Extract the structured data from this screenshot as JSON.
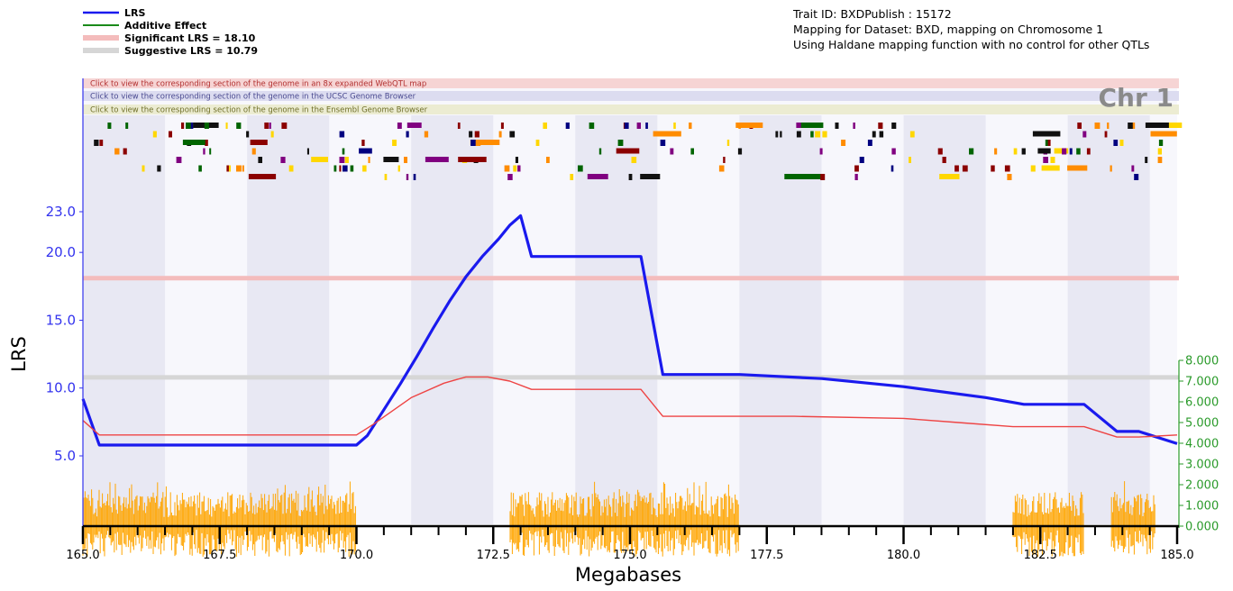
{
  "header": {
    "trait_line": "Trait ID: BXDPublish : 15172",
    "dataset_line": "Mapping for Dataset: BXD, mapping on Chromosome 1",
    "method_line": "Using Haldane mapping function with no control for other QTLs"
  },
  "legend": {
    "items": [
      {
        "label": "LRS",
        "color": "#1a1aee",
        "style": "line"
      },
      {
        "label": "Additive Effect",
        "color": "#1a8a1a",
        "style": "line"
      },
      {
        "label": "Significant LRS = 18.10",
        "color": "#f4bcbc",
        "style": "band"
      },
      {
        "label": "Suggestive LRS = 10.79",
        "color": "#d6d6d6",
        "style": "band"
      }
    ]
  },
  "banners": [
    {
      "text": "Click to view the corresponding section of the genome in an 8x expanded WebQTL map",
      "bg": "#f6d4d4",
      "fg": "#b23030"
    },
    {
      "text": "Click to view the corresponding section of the genome in the UCSC Genome Browser",
      "bg": "#dcdcf0",
      "fg": "#4a4a90"
    },
    {
      "text": "Click to view the corresponding section of the genome in the Ensembl Genome Browser",
      "bg": "#ececd2",
      "fg": "#70702a"
    }
  ],
  "chromosome_label": "Chr 1",
  "colors": {
    "lrs": "#1a1aee",
    "additive": "#ee4444",
    "significant": "#f4bcbc",
    "suggestive": "#d6d6d6",
    "axis_left": "#3333ee",
    "axis_right": "#2a9a2a",
    "snp_density": "#ffa500",
    "band_light": "#f7f7fc",
    "band_dark": "#e8e8f3"
  },
  "chart_data": {
    "type": "line",
    "xlabel": "Megabases",
    "ylabel": "LRS",
    "xlim": [
      165.0,
      185.0
    ],
    "ylim": [
      0,
      23.0
    ],
    "y2lim": [
      0,
      8.0
    ],
    "x_ticks": [
      "165.0",
      "167.5",
      "170.0",
      "172.5",
      "175.0",
      "177.5",
      "180.0",
      "182.5",
      "185.0"
    ],
    "y_ticks": [
      "5.0",
      "10.0",
      "15.0",
      "20.0",
      "23.0"
    ],
    "y2_ticks": [
      "0.000",
      "1.000",
      "2.000",
      "3.000",
      "4.000",
      "5.000",
      "6.000",
      "7.000",
      "8.000"
    ],
    "thresholds": {
      "significant": 18.1,
      "suggestive": 10.79
    },
    "series": [
      {
        "name": "LRS",
        "axis": "left",
        "x": [
          165.0,
          165.3,
          170.0,
          170.2,
          170.5,
          170.8,
          171.1,
          171.4,
          171.7,
          172.0,
          172.3,
          172.6,
          172.8,
          173.0,
          173.2,
          175.2,
          175.6,
          177.0,
          178.5,
          180.0,
          181.5,
          182.2,
          183.3,
          183.9,
          184.3,
          185.0
        ],
        "y": [
          9.2,
          5.8,
          5.8,
          6.5,
          8.4,
          10.3,
          12.3,
          14.4,
          16.4,
          18.2,
          19.7,
          21.0,
          22.0,
          22.7,
          19.7,
          19.7,
          11.0,
          11.0,
          10.7,
          10.1,
          9.3,
          8.8,
          8.8,
          6.8,
          6.8,
          5.9
        ]
      },
      {
        "name": "Additive Effect",
        "axis": "right",
        "x": [
          165.0,
          165.3,
          170.0,
          170.3,
          171.0,
          171.6,
          172.0,
          172.4,
          172.8,
          173.2,
          175.2,
          175.6,
          178.0,
          180.0,
          181.0,
          182.0,
          183.3,
          183.9,
          184.3,
          185.0
        ],
        "y": [
          5.1,
          4.4,
          4.4,
          4.9,
          6.2,
          6.9,
          7.2,
          7.2,
          7.0,
          6.6,
          6.6,
          5.3,
          5.3,
          5.2,
          5.0,
          4.8,
          4.8,
          4.3,
          4.3,
          4.4
        ]
      }
    ]
  }
}
